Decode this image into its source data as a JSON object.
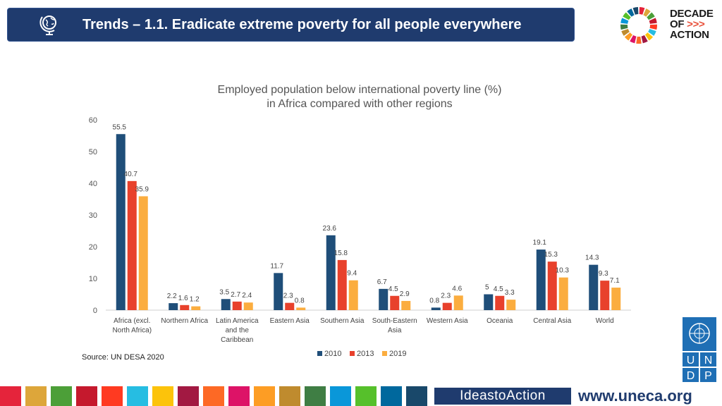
{
  "header": {
    "title": "Trends – 1.1. Eradicate extreme poverty for all people everywhere",
    "logo_lines": [
      "DECADE",
      "OF",
      "ACTION"
    ],
    "logo_arrows": ">>>"
  },
  "chart_data": {
    "type": "bar",
    "title": "Employed population below international poverty line (%)",
    "subtitle": "in Africa compared with other regions",
    "categories": [
      [
        "Africa (excl.",
        "North Africa)"
      ],
      [
        "Northern Africa"
      ],
      [
        "Latin America",
        "and the",
        "Caribbean"
      ],
      [
        "Eastern Asia"
      ],
      [
        "Southern Asia"
      ],
      [
        "South-Eastern",
        "Asia"
      ],
      [
        "Western Asia"
      ],
      [
        "Oceania"
      ],
      [
        "Central Asia"
      ],
      [
        "World"
      ]
    ],
    "series": [
      {
        "name": "2010",
        "color": "#1f4e79",
        "values": [
          55.5,
          2.2,
          3.5,
          11.7,
          23.6,
          6.7,
          0.8,
          5,
          19.1,
          14.3
        ]
      },
      {
        "name": "2013",
        "color": "#e8412c",
        "values": [
          40.7,
          1.6,
          2.7,
          2.3,
          15.8,
          4.5,
          2.3,
          4.5,
          15.3,
          9.3
        ]
      },
      {
        "name": "2019",
        "color": "#fbad3f",
        "values": [
          35.9,
          1.2,
          2.4,
          0.8,
          9.4,
          2.9,
          4.6,
          3.3,
          10.3,
          7.1
        ]
      }
    ],
    "ylim": [
      0,
      60
    ],
    "yticks": [
      0,
      10,
      20,
      30,
      40,
      50,
      60
    ],
    "legend": "bottom"
  },
  "source": "Source: UN DESA 2020",
  "footer": {
    "ideas_label": "IdeastoAction",
    "website": "www.uneca.org",
    "un_letters": [
      "U",
      "N",
      "D",
      "P"
    ]
  }
}
